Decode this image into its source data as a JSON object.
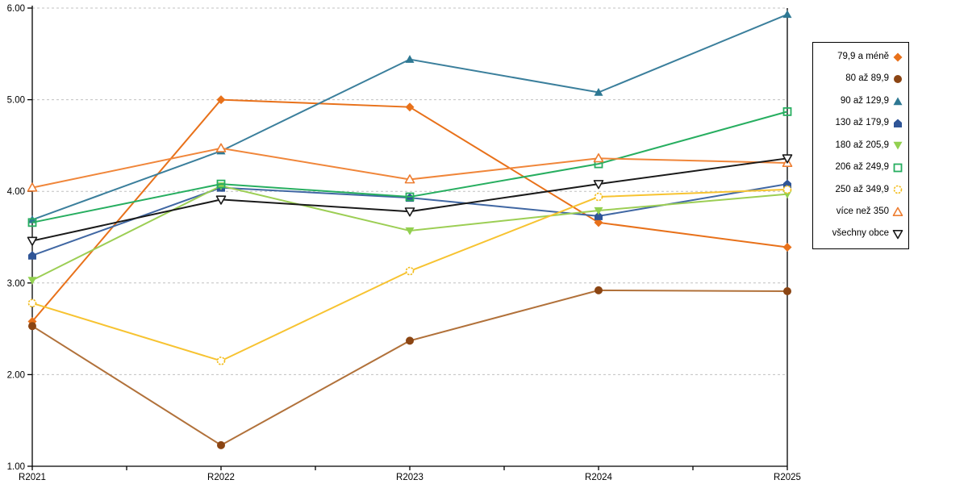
{
  "chart_data": {
    "type": "line",
    "title": "",
    "xlabel": "",
    "ylabel": "",
    "categories": [
      "R2021",
      "R2022",
      "R2023",
      "R2024",
      "R2025"
    ],
    "ylim": [
      1,
      6
    ],
    "y_ticks": [
      {
        "label": "6.00",
        "value": 6
      },
      {
        "label": "5.00",
        "value": 5
      },
      {
        "label": "4.00",
        "value": 4
      },
      {
        "label": "3.00",
        "value": 3
      },
      {
        "label": "2.00",
        "value": 2
      },
      {
        "label": "1.00",
        "value": 1
      }
    ],
    "grid": "horizontal-dashed",
    "legend_position": "right",
    "series": [
      {
        "name": "79,9 a méně",
        "marker": "diamond",
        "line_color": "#E8711A",
        "marker_color": "#E8711A",
        "values": [
          2.58,
          5.0,
          4.92,
          3.66,
          3.39
        ]
      },
      {
        "name": "80 až 89,9",
        "marker": "circle",
        "line_color": "#B1713A",
        "marker_color": "#8B4513",
        "values": [
          2.53,
          1.23,
          2.37,
          2.92,
          2.91
        ]
      },
      {
        "name": "90 až 129,9",
        "marker": "triangle-up",
        "line_color": "#3B7F9C",
        "marker_color": "#2E7893",
        "values": [
          3.69,
          4.44,
          5.44,
          5.08,
          5.93
        ]
      },
      {
        "name": "130 až 179,9",
        "marker": "pentagon",
        "line_color": "#4067A3",
        "marker_color": "#2F5597",
        "values": [
          3.3,
          4.04,
          3.93,
          3.73,
          4.08
        ]
      },
      {
        "name": "180 až 205,9",
        "marker": "triangle-down",
        "line_color": "#9CCE54",
        "marker_color": "#92D050",
        "values": [
          3.03,
          4.06,
          3.57,
          3.79,
          3.97
        ]
      },
      {
        "name": "206 až 249,9",
        "marker": "square-open",
        "line_color": "#27AE60",
        "marker_color": "#27AE60",
        "values": [
          3.66,
          4.08,
          3.94,
          4.3,
          4.87
        ]
      },
      {
        "name": "250 až 349,9",
        "marker": "circle-open",
        "line_color": "#F7C331",
        "marker_color": "#F2BC1B",
        "values": [
          2.78,
          2.15,
          3.13,
          3.94,
          4.02
        ]
      },
      {
        "name": "více než 350",
        "marker": "triangle-open",
        "line_color": "#F0863A",
        "marker_color": "#ED7D31",
        "values": [
          4.04,
          4.47,
          4.13,
          4.36,
          4.31
        ]
      },
      {
        "name": "všechny obce",
        "marker": "triangle-down-open",
        "line_color": "#1A1A1A",
        "marker_color": "#1A1A1A",
        "values": [
          3.46,
          3.91,
          3.78,
          4.08,
          4.36
        ]
      }
    ]
  },
  "colors": {
    "background": "#FFFFFF",
    "grid": "#C0C0C0",
    "axis": "#000000",
    "tick_label": "#000000",
    "legend_border": "#000000"
  }
}
